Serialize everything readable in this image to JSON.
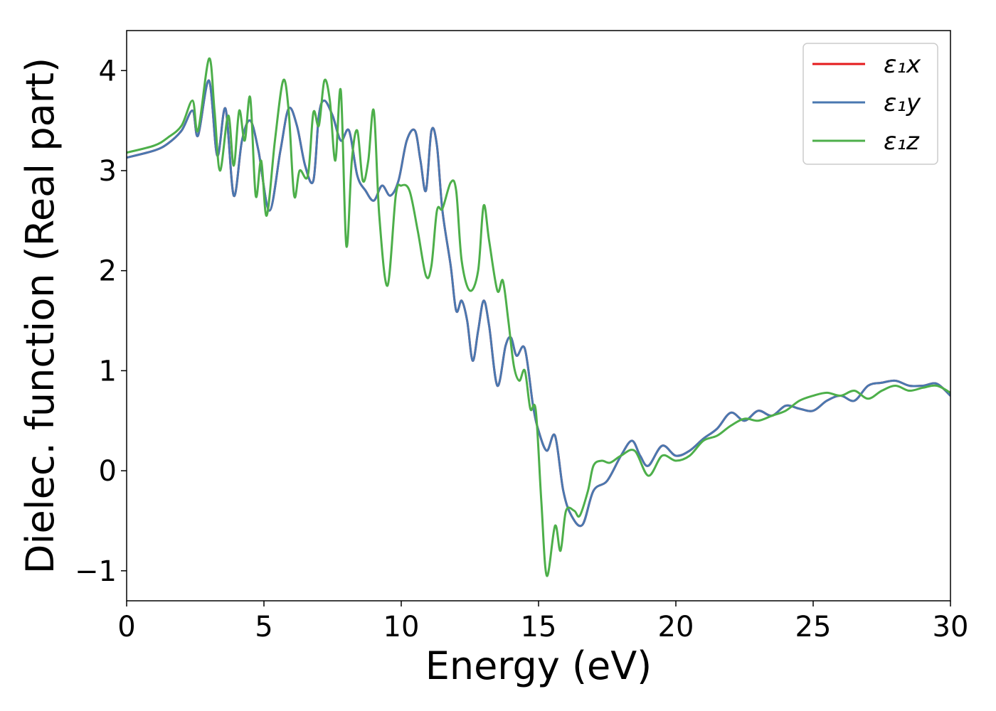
{
  "chart_data": {
    "type": "line",
    "title": "",
    "xlabel": "Energy (eV)",
    "ylabel": "Dielec. function (Real part)",
    "xlim": [
      0,
      30
    ],
    "ylim": [
      -1.3,
      4.4
    ],
    "xticks": [
      0,
      5,
      10,
      15,
      20,
      25,
      30
    ],
    "xtick_labels": [
      "0",
      "5",
      "10",
      "15",
      "20",
      "25",
      "30"
    ],
    "yticks": [
      -1,
      0,
      1,
      2,
      3,
      4
    ],
    "ytick_labels": [
      "−1",
      "0",
      "1",
      "2",
      "3",
      "4"
    ],
    "grid": false,
    "legend_position": "top-right",
    "series": [
      {
        "name": "ε₁x",
        "color": "#e41a1c",
        "x": [
          0,
          1,
          1.5,
          2,
          2.4,
          2.6,
          3.0,
          3.3,
          3.6,
          3.9,
          4.2,
          4.5,
          4.8,
          5.2,
          5.6,
          5.9,
          6.2,
          6.5,
          6.8,
          7.0,
          7.2,
          7.5,
          7.8,
          8.1,
          8.4,
          8.7,
          9.0,
          9.3,
          9.6,
          9.9,
          10.2,
          10.5,
          10.7,
          10.9,
          11.1,
          11.3,
          11.5,
          11.8,
          12.0,
          12.2,
          12.4,
          12.6,
          12.8,
          13.0,
          13.2,
          13.5,
          13.8,
          14.0,
          14.2,
          14.5,
          14.8,
          15.0,
          15.3,
          15.6,
          15.9,
          16.2,
          16.6,
          17.0,
          17.5,
          18.0,
          18.4,
          18.7,
          19.0,
          19.5,
          20.0,
          20.5,
          21.0,
          21.5,
          22.0,
          22.5,
          23.0,
          23.5,
          24.0,
          24.5,
          25.0,
          25.5,
          26.0,
          26.5,
          27.0,
          27.5,
          28.0,
          28.5,
          29.0,
          29.5,
          30.0
        ],
        "y": [
          3.13,
          3.2,
          3.27,
          3.4,
          3.6,
          3.35,
          3.9,
          3.15,
          3.62,
          2.75,
          3.3,
          3.5,
          3.2,
          2.6,
          3.2,
          3.62,
          3.45,
          3.05,
          2.9,
          3.55,
          3.7,
          3.55,
          3.3,
          3.4,
          2.95,
          2.8,
          2.7,
          2.85,
          2.75,
          2.9,
          3.3,
          3.4,
          3.1,
          2.8,
          3.4,
          3.25,
          2.6,
          2.05,
          1.6,
          1.7,
          1.5,
          1.1,
          1.4,
          1.7,
          1.45,
          0.85,
          1.25,
          1.33,
          1.15,
          1.22,
          0.65,
          0.4,
          0.2,
          0.35,
          -0.2,
          -0.45,
          -0.54,
          -0.2,
          -0.1,
          0.15,
          0.3,
          0.15,
          0.05,
          0.25,
          0.15,
          0.2,
          0.32,
          0.42,
          0.58,
          0.5,
          0.6,
          0.55,
          0.65,
          0.62,
          0.6,
          0.7,
          0.75,
          0.7,
          0.85,
          0.88,
          0.9,
          0.85,
          0.85,
          0.87,
          0.75
        ]
      },
      {
        "name": "ε₁y",
        "color": "#4a78b0",
        "x": [
          0,
          1,
          1.5,
          2,
          2.4,
          2.6,
          3.0,
          3.3,
          3.6,
          3.9,
          4.2,
          4.5,
          4.8,
          5.2,
          5.6,
          5.9,
          6.2,
          6.5,
          6.8,
          7.0,
          7.2,
          7.5,
          7.8,
          8.1,
          8.4,
          8.7,
          9.0,
          9.3,
          9.6,
          9.9,
          10.2,
          10.5,
          10.7,
          10.9,
          11.1,
          11.3,
          11.5,
          11.8,
          12.0,
          12.2,
          12.4,
          12.6,
          12.8,
          13.0,
          13.2,
          13.5,
          13.8,
          14.0,
          14.2,
          14.5,
          14.8,
          15.0,
          15.3,
          15.6,
          15.9,
          16.2,
          16.6,
          17.0,
          17.5,
          18.0,
          18.4,
          18.7,
          19.0,
          19.5,
          20.0,
          20.5,
          21.0,
          21.5,
          22.0,
          22.5,
          23.0,
          23.5,
          24.0,
          24.5,
          25.0,
          25.5,
          26.0,
          26.5,
          27.0,
          27.5,
          28.0,
          28.5,
          29.0,
          29.5,
          30.0
        ],
        "y": [
          3.13,
          3.2,
          3.27,
          3.4,
          3.6,
          3.35,
          3.9,
          3.15,
          3.62,
          2.75,
          3.3,
          3.5,
          3.2,
          2.6,
          3.2,
          3.62,
          3.45,
          3.05,
          2.9,
          3.55,
          3.7,
          3.55,
          3.3,
          3.4,
          2.95,
          2.8,
          2.7,
          2.85,
          2.75,
          2.9,
          3.3,
          3.4,
          3.1,
          2.8,
          3.4,
          3.25,
          2.6,
          2.05,
          1.6,
          1.7,
          1.5,
          1.1,
          1.4,
          1.7,
          1.45,
          0.85,
          1.25,
          1.33,
          1.15,
          1.22,
          0.65,
          0.4,
          0.2,
          0.35,
          -0.2,
          -0.45,
          -0.54,
          -0.2,
          -0.1,
          0.15,
          0.3,
          0.15,
          0.05,
          0.25,
          0.15,
          0.2,
          0.32,
          0.42,
          0.58,
          0.5,
          0.6,
          0.55,
          0.65,
          0.62,
          0.6,
          0.7,
          0.75,
          0.7,
          0.85,
          0.88,
          0.9,
          0.85,
          0.85,
          0.87,
          0.75
        ]
      },
      {
        "name": "ε₁z",
        "color": "#4daf4a",
        "x": [
          0,
          1,
          1.5,
          2,
          2.4,
          2.6,
          3.0,
          3.2,
          3.4,
          3.7,
          3.9,
          4.1,
          4.3,
          4.5,
          4.7,
          4.9,
          5.1,
          5.4,
          5.7,
          5.9,
          6.1,
          6.3,
          6.6,
          6.8,
          7.0,
          7.2,
          7.4,
          7.6,
          7.8,
          8.0,
          8.2,
          8.4,
          8.6,
          8.8,
          9.0,
          9.2,
          9.5,
          9.8,
          10.0,
          10.3,
          10.6,
          10.9,
          11.1,
          11.3,
          11.5,
          11.8,
          12.0,
          12.2,
          12.5,
          12.8,
          13.0,
          13.2,
          13.5,
          13.7,
          13.9,
          14.1,
          14.3,
          14.5,
          14.7,
          14.9,
          15.1,
          15.3,
          15.6,
          15.8,
          16.0,
          16.3,
          16.5,
          16.8,
          17.0,
          17.3,
          17.6,
          18.0,
          18.5,
          19.0,
          19.5,
          20.0,
          20.5,
          21.0,
          21.5,
          22.0,
          22.5,
          23.0,
          23.5,
          24.0,
          24.5,
          25.0,
          25.5,
          26.0,
          26.5,
          27.0,
          27.5,
          28.0,
          28.5,
          29.0,
          29.5,
          30.0
        ],
        "y": [
          3.18,
          3.25,
          3.33,
          3.45,
          3.7,
          3.4,
          4.12,
          3.6,
          3.0,
          3.55,
          3.05,
          3.6,
          3.3,
          3.73,
          2.75,
          3.1,
          2.55,
          3.3,
          3.9,
          3.6,
          2.75,
          3.0,
          2.95,
          3.58,
          3.45,
          3.9,
          3.7,
          3.1,
          3.8,
          2.25,
          3.1,
          3.4,
          2.9,
          3.1,
          3.6,
          2.55,
          1.85,
          2.75,
          2.85,
          2.8,
          2.4,
          1.95,
          2.05,
          2.6,
          2.62,
          2.88,
          2.8,
          2.1,
          1.8,
          2.0,
          2.65,
          2.3,
          1.8,
          1.9,
          1.5,
          1.05,
          0.9,
          1.0,
          0.62,
          0.6,
          -0.3,
          -1.05,
          -0.55,
          -0.8,
          -0.4,
          -0.4,
          -0.45,
          -0.2,
          0.05,
          0.1,
          0.08,
          0.15,
          0.2,
          -0.05,
          0.15,
          0.1,
          0.15,
          0.3,
          0.35,
          0.45,
          0.52,
          0.5,
          0.55,
          0.6,
          0.7,
          0.75,
          0.78,
          0.75,
          0.8,
          0.72,
          0.8,
          0.85,
          0.8,
          0.83,
          0.85,
          0.78
        ]
      }
    ]
  }
}
